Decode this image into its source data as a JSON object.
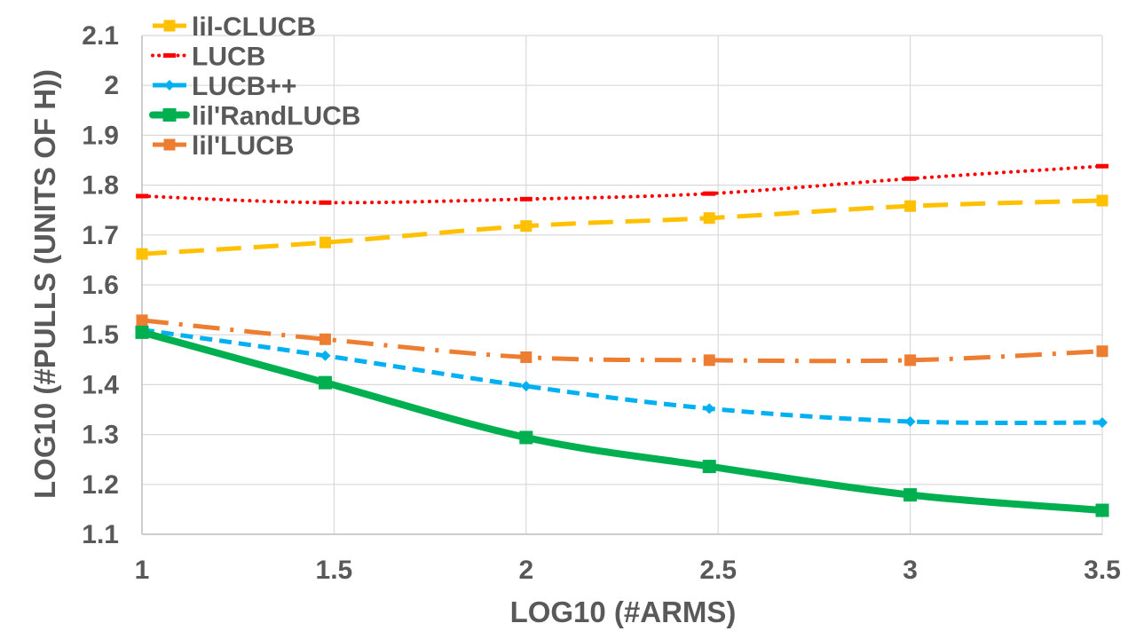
{
  "chart_data": {
    "type": "line",
    "title": "",
    "xlabel": "LOG10 (#ARMS)",
    "ylabel": "LOG10 (#PULLS (UNITS OF H))",
    "xlim": [
      1,
      3.5
    ],
    "ylim": [
      1.1,
      2.1
    ],
    "x_ticks": [
      1,
      1.5,
      2,
      2.5,
      3,
      3.5
    ],
    "x_tick_labels": [
      "1",
      "1.5",
      "2",
      "2.5",
      "3",
      "3.5"
    ],
    "y_ticks": [
      1.1,
      1.2,
      1.3,
      1.4,
      1.5,
      1.6,
      1.7,
      1.8,
      1.9,
      2.0,
      2.1
    ],
    "y_tick_labels": [
      "1.1",
      "1.2",
      "1.3",
      "1.4",
      "1.5",
      "1.6",
      "1.7",
      "1.8",
      "1.9",
      "2",
      "2.1"
    ],
    "grid": true,
    "legend_position": "top-left",
    "x": [
      1,
      1.477,
      2,
      2.477,
      3,
      3.5
    ],
    "series": [
      {
        "name": "lil-CLUCB",
        "color": "#FFC000",
        "dash": "long-dash",
        "marker": "square",
        "values": [
          1.662,
          1.685,
          1.718,
          1.734,
          1.758,
          1.769
        ]
      },
      {
        "name": "LUCB",
        "color": "#FF0000",
        "dash": "dotted",
        "marker": "dash",
        "values": [
          1.778,
          1.765,
          1.772,
          1.783,
          1.813,
          1.838
        ]
      },
      {
        "name": "LUCB++",
        "color": "#00B0F0",
        "dash": "dashed",
        "marker": "diamond",
        "values": [
          1.51,
          1.458,
          1.397,
          1.352,
          1.326,
          1.324
        ]
      },
      {
        "name": "lil'RandLUCB",
        "color": "#00B050",
        "dash": "solid",
        "marker": "square",
        "values": [
          1.505,
          1.404,
          1.294,
          1.236,
          1.179,
          1.148
        ]
      },
      {
        "name": "lil'LUCB",
        "color": "#ED7D31",
        "dash": "dash-dot",
        "marker": "square",
        "values": [
          1.529,
          1.491,
          1.455,
          1.449,
          1.449,
          1.467
        ]
      }
    ]
  }
}
